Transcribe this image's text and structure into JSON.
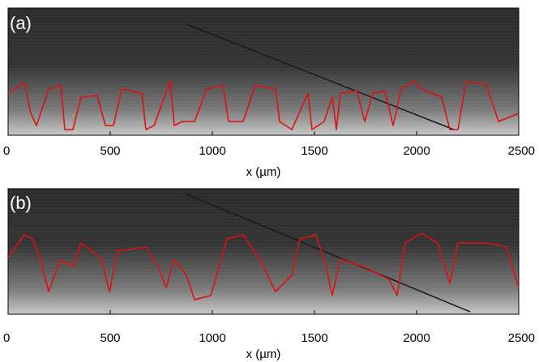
{
  "chart_data": [
    {
      "type": "image",
      "panel_label": "(a)",
      "xlabel": "x  (µm)",
      "xlim": [
        0,
        2500
      ],
      "xticks": [
        0,
        500,
        1000,
        1500,
        2000,
        2500
      ]
    },
    {
      "type": "image",
      "panel_label": "(b)",
      "xlabel": "x  (µm)",
      "xlim": [
        0,
        2500
      ],
      "xticks": [
        0,
        500,
        1000,
        1500,
        2000,
        2500
      ]
    }
  ]
}
